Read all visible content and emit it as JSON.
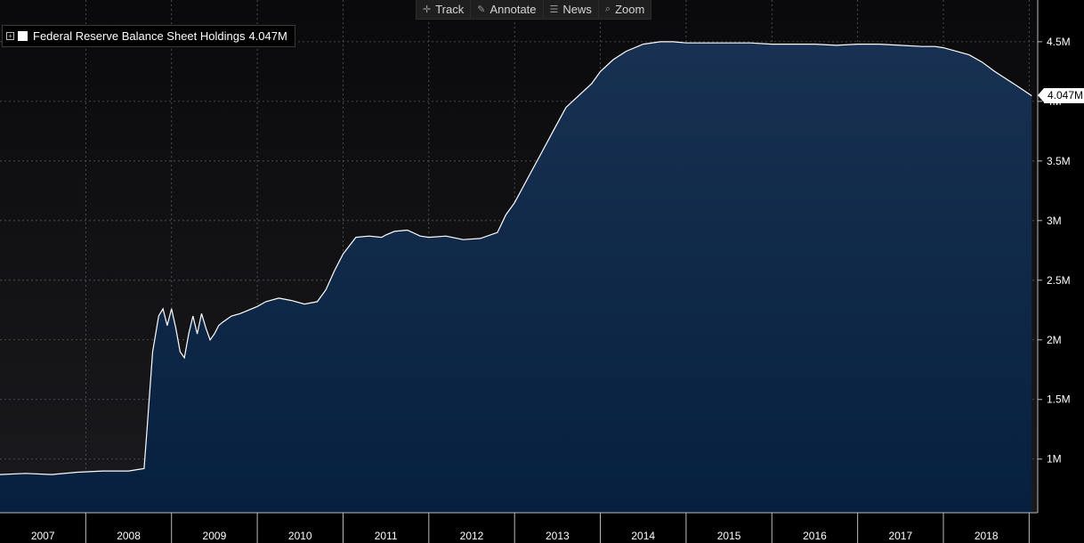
{
  "toolbar": {
    "items": [
      {
        "label": "Track",
        "icon": "crosshair-icon"
      },
      {
        "label": "Annotate",
        "icon": "pencil-icon"
      },
      {
        "label": "News",
        "icon": "news-icon"
      },
      {
        "label": "Zoom",
        "icon": "magnifier-icon"
      }
    ]
  },
  "legend": {
    "series_name": "Federal Reserve Balance Sheet Holdings",
    "value": "4.047M",
    "swatch_color": "#ffffff"
  },
  "last_value_label": "4.047M",
  "colors": {
    "background_top": "#131316",
    "fill_top": "#183152",
    "fill_bottom": "#07203f",
    "line": "#ffffff",
    "grid": "#5a5a5a",
    "axis_text": "#ffffff"
  },
  "chart_data": {
    "type": "area",
    "title": "",
    "xlabel": "",
    "ylabel": "",
    "grid": true,
    "legend_position": "top-left",
    "y_axis_side": "right",
    "y_ticks": [
      1.0,
      1.5,
      2.0,
      2.5,
      3.0,
      3.5,
      4.0,
      4.5
    ],
    "y_tick_labels": [
      "1M",
      "1.5M",
      "2M",
      "2.5M",
      "3M",
      "3.5M",
      "4M",
      "4.5M"
    ],
    "ylim": [
      0.55,
      4.85
    ],
    "x_tick_labels": [
      "2007",
      "2008",
      "2009",
      "2010",
      "2011",
      "2012",
      "2013",
      "2014",
      "2015",
      "2016",
      "2017",
      "2018"
    ],
    "xlim": [
      2007.0,
      2019.1
    ],
    "series": [
      {
        "name": "Federal Reserve Balance Sheet Holdings",
        "last_value": 4.047,
        "x": [
          2007.0,
          2007.3,
          2007.6,
          2007.9,
          2008.2,
          2008.5,
          2008.68,
          2008.72,
          2008.78,
          2008.85,
          2008.9,
          2008.95,
          2009.0,
          2009.05,
          2009.1,
          2009.15,
          2009.2,
          2009.25,
          2009.3,
          2009.35,
          2009.4,
          2009.45,
          2009.5,
          2009.55,
          2009.6,
          2009.7,
          2009.8,
          2009.9,
          2010.0,
          2010.1,
          2010.25,
          2010.4,
          2010.55,
          2010.7,
          2010.8,
          2010.9,
          2011.0,
          2011.15,
          2011.3,
          2011.45,
          2011.5,
          2011.6,
          2011.75,
          2011.9,
          2012.0,
          2012.2,
          2012.4,
          2012.6,
          2012.8,
          2012.9,
          2013.0,
          2013.15,
          2013.3,
          2013.45,
          2013.6,
          2013.75,
          2013.9,
          2014.0,
          2014.15,
          2014.3,
          2014.5,
          2014.7,
          2014.85,
          2015.0,
          2015.25,
          2015.5,
          2015.75,
          2016.0,
          2016.25,
          2016.5,
          2016.75,
          2017.0,
          2017.25,
          2017.5,
          2017.75,
          2017.9,
          2018.0,
          2018.15,
          2018.3,
          2018.45,
          2018.6,
          2018.75,
          2018.9,
          2019.03
        ],
        "y": [
          0.87,
          0.88,
          0.87,
          0.89,
          0.9,
          0.9,
          0.92,
          1.3,
          1.9,
          2.2,
          2.26,
          2.12,
          2.26,
          2.1,
          1.9,
          1.85,
          2.05,
          2.2,
          2.05,
          2.22,
          2.1,
          2.0,
          2.05,
          2.12,
          2.15,
          2.2,
          2.22,
          2.25,
          2.28,
          2.32,
          2.35,
          2.33,
          2.3,
          2.32,
          2.42,
          2.58,
          2.72,
          2.86,
          2.87,
          2.86,
          2.88,
          2.91,
          2.92,
          2.87,
          2.86,
          2.87,
          2.84,
          2.85,
          2.9,
          3.05,
          3.15,
          3.35,
          3.55,
          3.75,
          3.95,
          4.05,
          4.15,
          4.25,
          4.35,
          4.42,
          4.48,
          4.5,
          4.5,
          4.49,
          4.49,
          4.49,
          4.49,
          4.48,
          4.48,
          4.48,
          4.47,
          4.48,
          4.48,
          4.47,
          4.46,
          4.46,
          4.45,
          4.42,
          4.39,
          4.33,
          4.25,
          4.18,
          4.11,
          4.047
        ]
      }
    ]
  }
}
